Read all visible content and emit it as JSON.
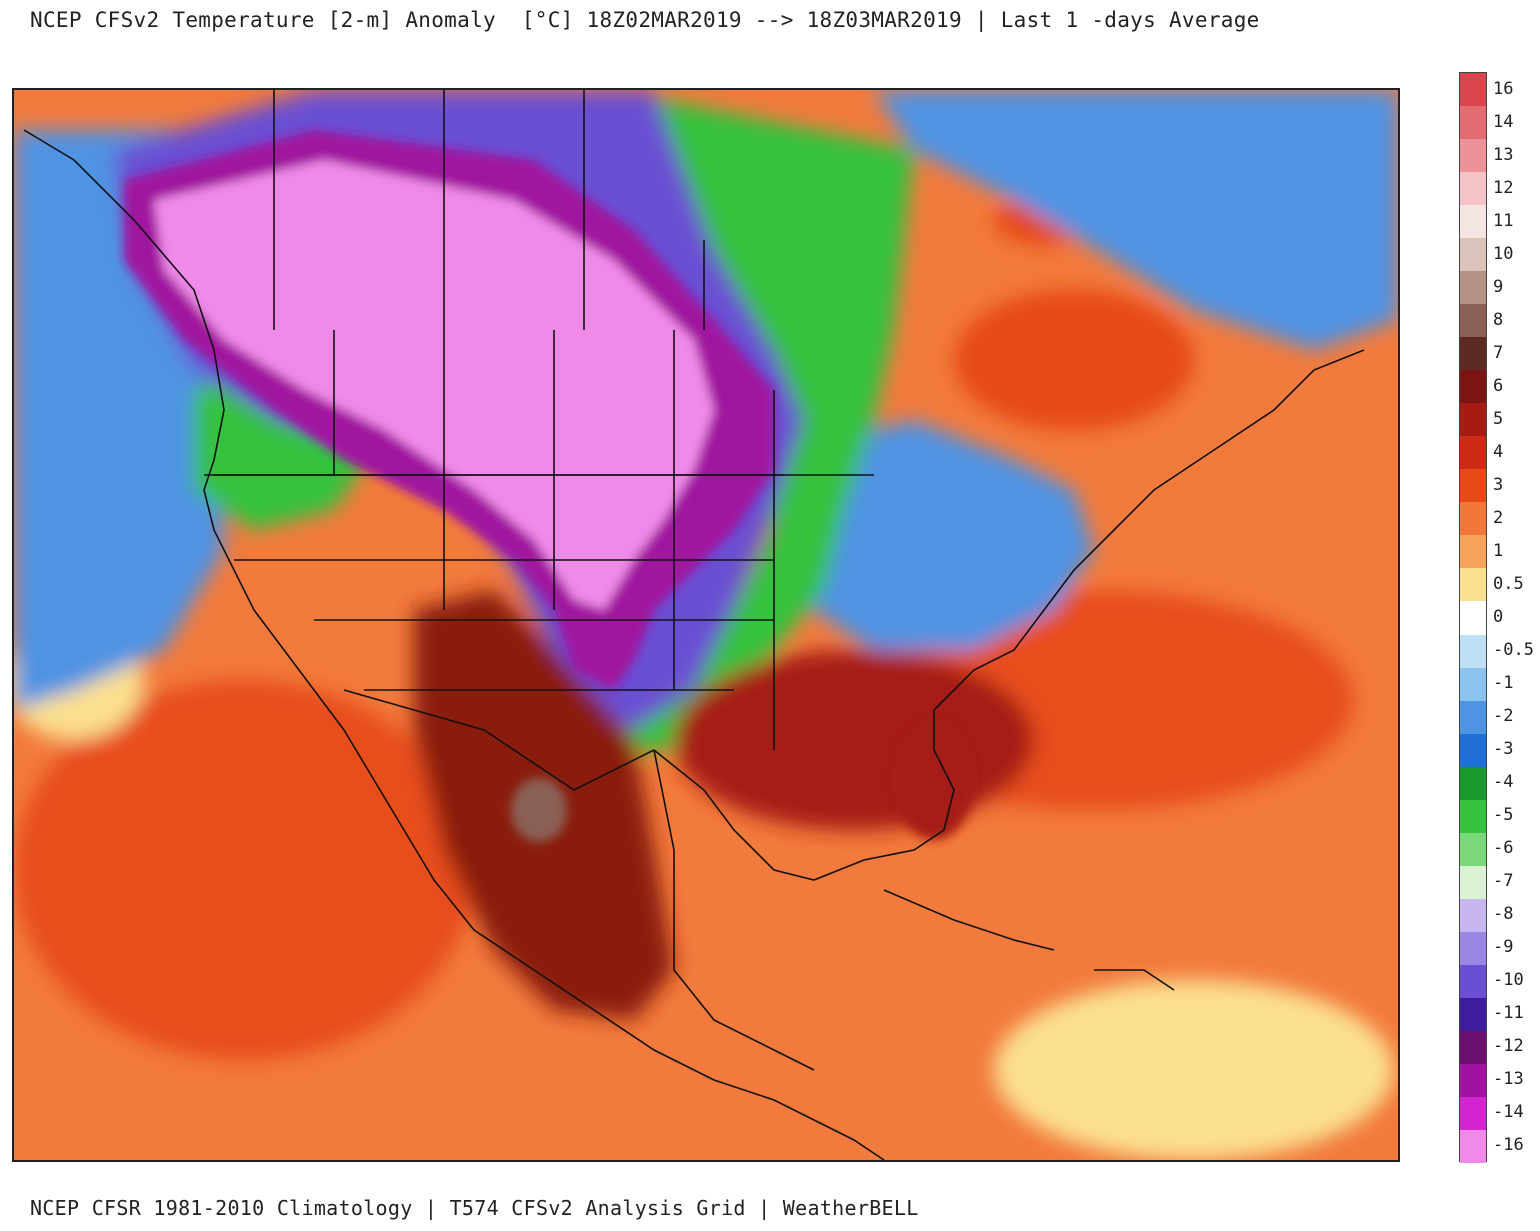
{
  "title": "NCEP CFSv2 Temperature [2-m] Anomaly  [°C] 18Z02MAR2019 --> 18Z03MAR2019 | Last 1 -days Average",
  "footer": "NCEP CFSR 1981-2010 Climatology | T574 CFSv2 Analysis Grid | WeatherBELL",
  "colorbar": {
    "unit": "°C",
    "levels": [
      {
        "label": "16",
        "color": "#d8454d"
      },
      {
        "label": "14",
        "color": "#e36b72"
      },
      {
        "label": "13",
        "color": "#ec9298"
      },
      {
        "label": "12",
        "color": "#f5c4c8"
      },
      {
        "label": "11",
        "color": "#f4e4e2"
      },
      {
        "label": "10",
        "color": "#dcc3bc"
      },
      {
        "label": "9",
        "color": "#b59285"
      },
      {
        "label": "8",
        "color": "#8a6055"
      },
      {
        "label": "7",
        "color": "#5e2a24"
      },
      {
        "label": "6",
        "color": "#7a1512"
      },
      {
        "label": "5",
        "color": "#a61c12"
      },
      {
        "label": "4",
        "color": "#cc2a14"
      },
      {
        "label": "3",
        "color": "#e64a19"
      },
      {
        "label": "2",
        "color": "#f2773a"
      },
      {
        "label": "1",
        "color": "#f6a35c"
      },
      {
        "label": "0.5",
        "color": "#fbe08f"
      },
      {
        "label": "0",
        "color": "#ffffff"
      },
      {
        "label": "-0.5",
        "color": "#bde0f6"
      },
      {
        "label": "-1",
        "color": "#8cc3ef"
      },
      {
        "label": "-2",
        "color": "#4f93e3"
      },
      {
        "label": "-3",
        "color": "#1f6fd6"
      },
      {
        "label": "-4",
        "color": "#1a9a2e"
      },
      {
        "label": "-5",
        "color": "#36c23e"
      },
      {
        "label": "-6",
        "color": "#7ad77a"
      },
      {
        "label": "-7",
        "color": "#d9f2d4"
      },
      {
        "label": "-8",
        "color": "#c7b6ef"
      },
      {
        "label": "-9",
        "color": "#9b86e3"
      },
      {
        "label": "-10",
        "color": "#6a4fd3"
      },
      {
        "label": "-11",
        "color": "#3d1c9e"
      },
      {
        "label": "-12",
        "color": "#6b0f6e"
      },
      {
        "label": "-13",
        "color": "#a0129f"
      },
      {
        "label": "-14",
        "color": "#d324cf"
      },
      {
        "label": "-16",
        "color": "#f08ae8"
      }
    ]
  },
  "map": {
    "ocean_color": "#f27a3c",
    "pacific_warm_color": "#e84e1f",
    "cold_core_color": "#f08ae8",
    "cold_ring_color": "#a0129f",
    "cool_band_color": "#6a4fd3",
    "green_band_color": "#36c23e",
    "blue_band_color": "#4f93e3",
    "southeast_hot_color": "#a61c12",
    "mexico_hot_color": "#8a1a10",
    "mexico_peak_color": "#8a6055",
    "tropical_light_color": "#fbe08f",
    "canada_warm_color": "#e64a19",
    "boundary_color": "#111111"
  }
}
